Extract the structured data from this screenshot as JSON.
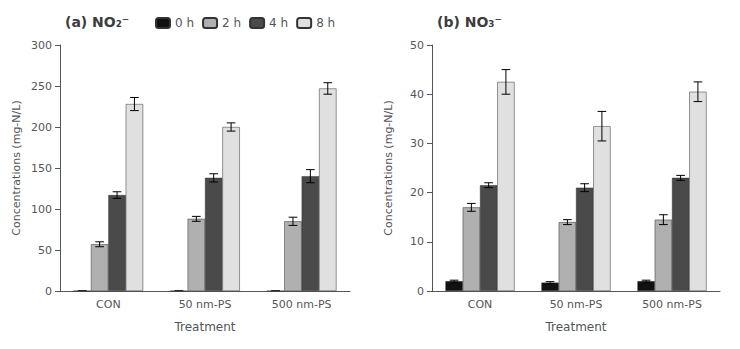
{
  "chart_data": [
    {
      "type": "bar",
      "title": "(a) NO₂⁻",
      "categories": [
        "CON",
        "50 nm-PS",
        "500 nm-PS"
      ],
      "series": [
        {
          "name": "0 h",
          "color": "#111111",
          "values": [
            0,
            0,
            0
          ],
          "errors": [
            0,
            0,
            0
          ]
        },
        {
          "name": "2 h",
          "color": "#b0b0b0",
          "values": [
            57,
            88,
            85
          ],
          "errors": [
            3,
            3,
            5
          ]
        },
        {
          "name": "4 h",
          "color": "#4a4a4a",
          "values": [
            117,
            138,
            140
          ],
          "errors": [
            4,
            5,
            8
          ]
        },
        {
          "name": "8 h",
          "color": "#e0e0e0",
          "values": [
            228,
            200,
            247
          ],
          "errors": [
            8,
            5,
            7
          ]
        }
      ],
      "xlabel": "Treatment",
      "ylabel": "Concentrations (mg-N/L)",
      "ylim": [
        0,
        300
      ],
      "yticks": [
        0,
        50,
        100,
        150,
        200,
        250,
        300
      ],
      "grid": false,
      "legend": "upper left"
    },
    {
      "type": "bar",
      "title": "(b) NO₃⁻",
      "categories": [
        "CON",
        "50 nm-PS",
        "500 nm-PS"
      ],
      "series": [
        {
          "name": "0 h",
          "color": "#111111",
          "values": [
            2.0,
            1.7,
            2.0
          ],
          "errors": [
            0.2,
            0.2,
            0.2
          ]
        },
        {
          "name": "2 h",
          "color": "#b0b0b0",
          "values": [
            17.0,
            14.0,
            14.5
          ],
          "errors": [
            0.8,
            0.5,
            1.0
          ]
        },
        {
          "name": "4 h",
          "color": "#4a4a4a",
          "values": [
            21.5,
            21.0,
            23.0
          ],
          "errors": [
            0.5,
            0.8,
            0.5
          ]
        },
        {
          "name": "8 h",
          "color": "#e0e0e0",
          "values": [
            42.5,
            33.5,
            40.5
          ],
          "errors": [
            2.5,
            3.0,
            2.0
          ]
        }
      ],
      "xlabel": "Treatment",
      "ylabel": "Concentrations (mg-N/L)",
      "ylim": [
        0,
        50
      ],
      "yticks": [
        0,
        10,
        20,
        30,
        40,
        50
      ],
      "grid": false
    }
  ]
}
